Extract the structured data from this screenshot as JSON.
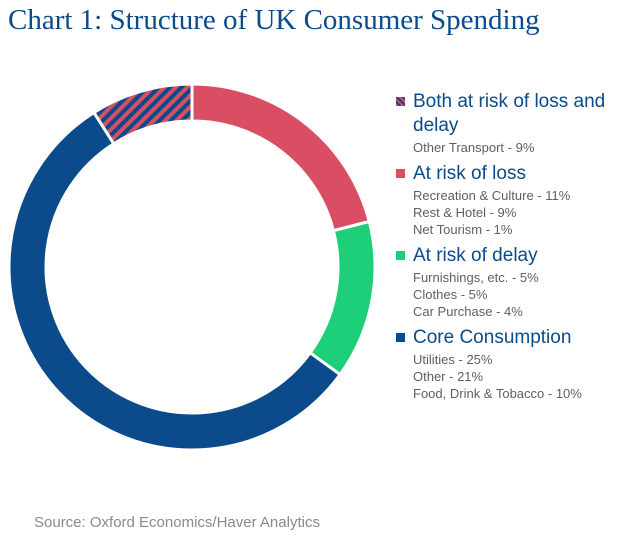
{
  "title": "Chart 1: Structure of UK Consumer Spending",
  "source": "Source: Oxford Economics/Haver Analytics",
  "chart_data": {
    "type": "pie",
    "donut": true,
    "legend_position": "right",
    "categories": [
      {
        "name": "Both at risk of loss and delay",
        "color": "#0b4a8b",
        "stripe_color": "#d94e63",
        "pattern": "diagonal-stripes",
        "items": [
          {
            "label": "Other Transport - 9%",
            "value": 9
          }
        ]
      },
      {
        "name": "At risk of loss",
        "color": "#d94e63",
        "items": [
          {
            "label": "Recreation & Culture - 11%",
            "value": 11
          },
          {
            "label": "Rest & Hotel - 9%",
            "value": 9
          },
          {
            "label": "Net Tourism - 1%",
            "value": 1
          }
        ]
      },
      {
        "name": "At risk of delay",
        "color": "#1ecf7a",
        "items": [
          {
            "label": "Furnishings, etc. - 5%",
            "value": 5
          },
          {
            "label": "Clothes - 5%",
            "value": 5
          },
          {
            "label": "Car Purchase - 4%",
            "value": 4
          }
        ]
      },
      {
        "name": "Core Consumption",
        "color": "#0b4a8b",
        "items": [
          {
            "label": "Utilities - 25%",
            "value": 25
          },
          {
            "label": "Other - 21%",
            "value": 21
          },
          {
            "label": "Food, Drink & Tobacco - 10%",
            "value": 10
          }
        ]
      }
    ],
    "slice_order": [
      "At risk of loss",
      "At risk of delay",
      "Core Consumption",
      "Both at risk of loss and delay"
    ]
  }
}
